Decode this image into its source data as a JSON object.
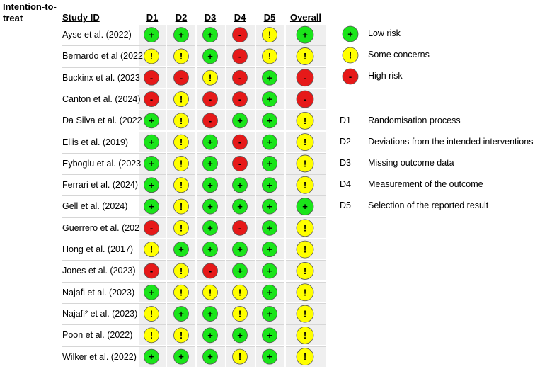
{
  "section_title": "Intention-to-treat",
  "headers": {
    "study_id": "Study ID",
    "domains": [
      "D1",
      "D2",
      "D3",
      "D4",
      "D5"
    ],
    "overall": "Overall"
  },
  "studies": [
    {
      "label": "Ayse et al. (2022)",
      "judgments": [
        "low",
        "low",
        "low",
        "high",
        "some"
      ],
      "overall": "low"
    },
    {
      "label": "Bernardo et al (2022",
      "judgments": [
        "some",
        "some",
        "low",
        "high",
        "some"
      ],
      "overall": "some"
    },
    {
      "label": "Buckinx et al. (2023",
      "judgments": [
        "high",
        "high",
        "some",
        "high",
        "low"
      ],
      "overall": "high"
    },
    {
      "label": "Canton et al. (2024)",
      "judgments": [
        "high",
        "some",
        "high",
        "high",
        "low"
      ],
      "overall": "high"
    },
    {
      "label": "Da Silva et al. (2022",
      "judgments": [
        "low",
        "some",
        "high",
        "low",
        "low"
      ],
      "overall": "some"
    },
    {
      "label": "Ellis et al. (2019)",
      "judgments": [
        "low",
        "some",
        "low",
        "high",
        "low"
      ],
      "overall": "some"
    },
    {
      "label": "Eyboglu et al. (2023",
      "judgments": [
        "low",
        "some",
        "low",
        "high",
        "low"
      ],
      "overall": "some"
    },
    {
      "label": "Ferrari et al. (2024)",
      "judgments": [
        "low",
        "some",
        "low",
        "low",
        "low"
      ],
      "overall": "some"
    },
    {
      "label": "Gell et al. (2024)",
      "judgments": [
        "low",
        "some",
        "low",
        "low",
        "low"
      ],
      "overall": "low"
    },
    {
      "label": "Guerrero et al. (202",
      "judgments": [
        "high",
        "some",
        "low",
        "high",
        "low"
      ],
      "overall": "some"
    },
    {
      "label": "Hong et al. (2017)",
      "judgments": [
        "some",
        "low",
        "low",
        "low",
        "low"
      ],
      "overall": "some"
    },
    {
      "label": "Jones et al. (2023)",
      "judgments": [
        "high",
        "some",
        "high",
        "low",
        "low"
      ],
      "overall": "some"
    },
    {
      "label": "Najafi et al. (2023)",
      "judgments": [
        "low",
        "some",
        "some",
        "some",
        "low"
      ],
      "overall": "some"
    },
    {
      "label": "Najafi² et al. (2023)",
      "judgments": [
        "some",
        "low",
        "low",
        "some",
        "low"
      ],
      "overall": "some"
    },
    {
      "label": "Poon et al. (2022)",
      "judgments": [
        "some",
        "some",
        "low",
        "low",
        "low"
      ],
      "overall": "some"
    },
    {
      "label": "Wilker et al. (2022)",
      "judgments": [
        "low",
        "low",
        "low",
        "some",
        "low"
      ],
      "overall": "some"
    }
  ],
  "judgment_levels": {
    "low": {
      "symbol": "+",
      "color": "#1ae51a"
    },
    "some": {
      "symbol": "!",
      "color": "#ffff00"
    },
    "high": {
      "symbol": "-",
      "color": "#e61919"
    }
  },
  "legend": {
    "judgments": [
      {
        "level": "low",
        "symbol": "+",
        "label": "Low risk"
      },
      {
        "level": "some",
        "symbol": "!",
        "label": "Some concerns"
      },
      {
        "level": "high",
        "symbol": "-",
        "label": "High risk"
      }
    ],
    "domains": [
      {
        "code": "D1",
        "label": "Randomisation process"
      },
      {
        "code": "D2",
        "label": "Deviations from the intended interventions"
      },
      {
        "code": "D3",
        "label": "Missing outcome data"
      },
      {
        "code": "D4",
        "label": "Measurement of the outcome"
      },
      {
        "code": "D5",
        "label": "Selection of the reported result"
      }
    ]
  }
}
